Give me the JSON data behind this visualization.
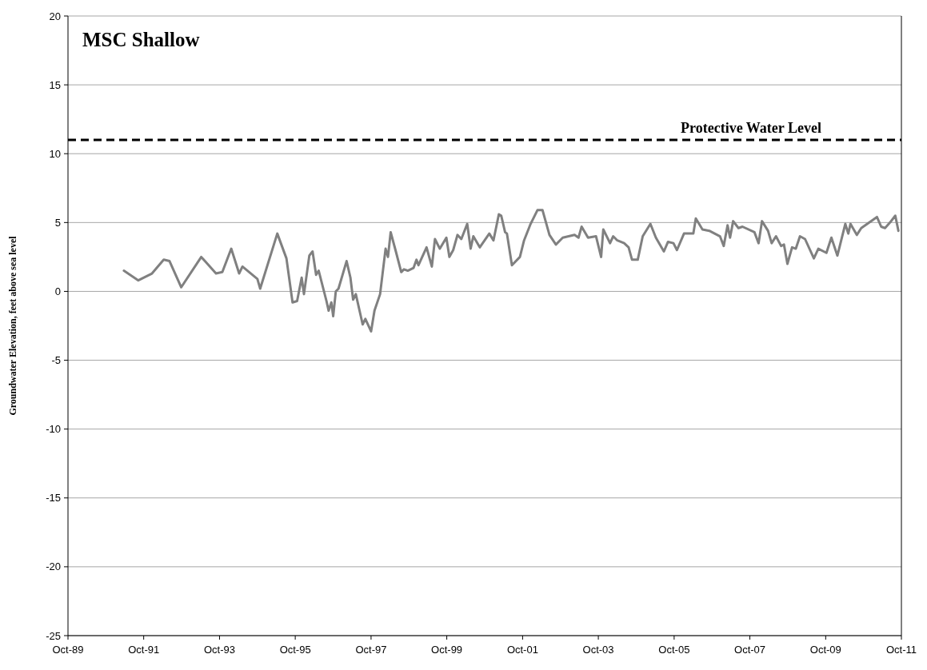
{
  "chart_data": {
    "type": "line",
    "title": "MSC Shallow",
    "ylabel": "Groundwater Elevation, feet above sea level",
    "x": [
      "1991-03-24",
      "1991-08-10",
      "1991-12-20",
      "1992-04-11",
      "1992-06-06",
      "1992-09-27",
      "1993-04-08",
      "1993-08-28",
      "1993-10-28",
      "1994-01-22",
      "1994-04-08",
      "1994-05-10",
      "1994-10-01",
      "1994-10-28",
      "1995-04-11",
      "1995-07-08",
      "1995-09-05",
      "1995-10-19",
      "1995-12-02",
      "1995-12-24",
      "1996-02-14",
      "1996-03-16",
      "1996-04-19",
      "1996-05-14",
      "1996-07-28",
      "1996-08-18",
      "1996-09-13",
      "1996-10-01",
      "1996-10-26",
      "1996-11-21",
      "1997-02-07",
      "1997-03-16",
      "1997-04-11",
      "1997-05-07",
      "1997-07-12",
      "1997-08-07",
      "1997-10-01",
      "1997-11-03",
      "1997-12-27",
      "1998-02-18",
      "1998-03-13",
      "1998-04-08",
      "1998-05-28",
      "1998-07-19",
      "1998-08-14",
      "1998-09-20",
      "1998-11-14",
      "1998-12-13",
      "1999-01-01",
      "1999-03-20",
      "1999-05-10",
      "1999-06-09",
      "1999-07-26",
      "1999-09-27",
      "1999-10-26",
      "1999-12-02",
      "2000-01-12",
      "2000-02-18",
      "2000-04-15",
      "2000-05-18",
      "2000-06-13",
      "2000-08-14",
      "2000-11-14",
      "2000-12-24",
      "2001-02-14",
      "2001-03-09",
      "2001-04-15",
      "2001-05-03",
      "2001-06-20",
      "2001-09-05",
      "2001-10-15",
      "2001-12-17",
      "2002-02-21",
      "2002-04-11",
      "2002-06-17",
      "2002-08-18",
      "2002-10-23",
      "2003-02-14",
      "2003-03-24",
      "2003-04-23",
      "2003-06-24",
      "2003-09-09",
      "2003-10-28",
      "2003-11-18",
      "2004-01-22",
      "2004-02-21",
      "2004-04-01",
      "2004-06-06",
      "2004-07-19",
      "2004-08-21",
      "2004-10-15",
      "2004-12-02",
      "2005-02-14",
      "2005-04-08",
      "2005-06-24",
      "2005-08-03",
      "2005-09-24",
      "2005-10-28",
      "2006-01-04",
      "2006-04-04",
      "2006-04-28",
      "2006-07-01",
      "2006-09-05",
      "2006-12-17",
      "2007-01-22",
      "2007-02-28",
      "2007-03-24",
      "2007-04-23",
      "2007-06-13",
      "2007-07-22",
      "2007-11-14",
      "2007-12-24",
      "2008-01-26",
      "2008-03-24",
      "2008-04-28",
      "2008-06-09",
      "2008-07-28",
      "2008-08-25",
      "2008-09-27",
      "2008-11-11",
      "2008-12-17",
      "2009-01-26",
      "2009-03-16",
      "2009-06-09",
      "2009-07-22",
      "2009-10-08",
      "2009-11-25",
      "2010-01-22",
      "2010-04-08",
      "2010-05-07",
      "2010-05-28",
      "2010-07-28",
      "2010-09-09",
      "2011-02-07",
      "2011-03-20",
      "2011-04-26",
      "2011-06-13",
      "2011-08-03",
      "2011-09-02"
    ],
    "series": [
      {
        "color": "#808080",
        "values": [
          1.5,
          0.8,
          1.3,
          2.3,
          2.2,
          0.3,
          2.5,
          1.3,
          1.4,
          3.1,
          1.3,
          1.8,
          0.9,
          0.2,
          4.2,
          2.4,
          -0.8,
          -0.7,
          1.0,
          -0.2,
          2.6,
          2.9,
          1.2,
          1.5,
          -0.7,
          -1.4,
          -0.8,
          -1.8,
          0.0,
          0.2,
          2.2,
          1.0,
          -0.6,
          -0.2,
          -2.4,
          -2.0,
          -2.9,
          -1.4,
          -0.2,
          3.1,
          2.5,
          4.3,
          2.9,
          1.4,
          1.6,
          1.5,
          1.7,
          2.3,
          1.9,
          3.2,
          1.8,
          3.8,
          3.1,
          3.9,
          2.5,
          3.0,
          4.1,
          3.8,
          4.9,
          3.1,
          4.0,
          3.2,
          4.2,
          3.7,
          5.6,
          5.5,
          4.3,
          4.2,
          1.9,
          2.5,
          3.7,
          4.9,
          5.9,
          5.9,
          4.1,
          3.4,
          3.9,
          4.1,
          3.9,
          4.7,
          3.9,
          4.0,
          2.5,
          4.5,
          3.5,
          4.0,
          3.7,
          3.5,
          3.2,
          2.3,
          2.3,
          4.0,
          4.9,
          3.9,
          2.9,
          3.6,
          3.5,
          3.0,
          4.2,
          4.2,
          5.3,
          4.5,
          4.4,
          4.0,
          3.3,
          4.8,
          3.9,
          5.1,
          4.6,
          4.7,
          4.3,
          3.5,
          5.1,
          4.4,
          3.5,
          4.0,
          3.3,
          3.4,
          2.0,
          3.2,
          3.1,
          4.0,
          3.8,
          2.4,
          3.1,
          2.8,
          3.9,
          2.6,
          4.9,
          4.2,
          4.9,
          4.1,
          4.6,
          5.4,
          4.7,
          4.6,
          5.0,
          5.5,
          4.4
        ]
      }
    ],
    "xlim": [
      "1989-10-01",
      "2011-10-01"
    ],
    "xticks": [
      {
        "value": "1989-10-01",
        "label": "Oct-89"
      },
      {
        "value": "1991-10-01",
        "label": "Oct-91"
      },
      {
        "value": "1993-10-01",
        "label": "Oct-93"
      },
      {
        "value": "1995-10-01",
        "label": "Oct-95"
      },
      {
        "value": "1997-10-01",
        "label": "Oct-97"
      },
      {
        "value": "1999-10-01",
        "label": "Oct-99"
      },
      {
        "value": "2001-10-01",
        "label": "Oct-01"
      },
      {
        "value": "2003-10-01",
        "label": "Oct-03"
      },
      {
        "value": "2005-10-01",
        "label": "Oct-05"
      },
      {
        "value": "2007-10-01",
        "label": "Oct-07"
      },
      {
        "value": "2009-10-01",
        "label": "Oct-09"
      },
      {
        "value": "2011-10-01",
        "label": "Oct-11"
      }
    ],
    "ylim": [
      -25,
      20
    ],
    "yticks": [
      -25,
      -20,
      -15,
      -10,
      -5,
      0,
      5,
      10,
      15,
      20
    ],
    "grid": "y",
    "marker": "none",
    "line_style": "solid",
    "ref_lines": [
      {
        "axis": "y",
        "value": 11,
        "label": "Protective Water Level",
        "color": "#000000",
        "line_style": "dashed"
      }
    ]
  }
}
